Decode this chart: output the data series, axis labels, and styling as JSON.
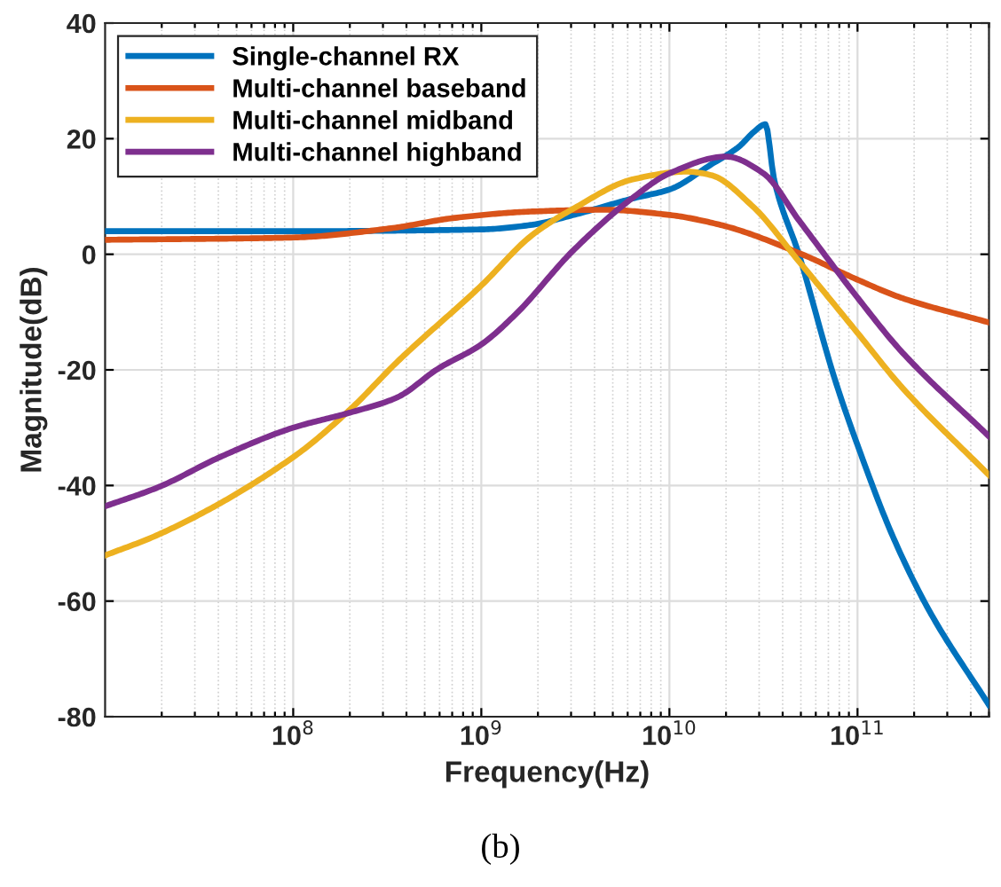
{
  "chart_data": {
    "type": "line",
    "xlabel": "Frequency(Hz)",
    "ylabel": "Magnitude(dB)",
    "log": "x",
    "xlim": [
      10000000.0,
      500000000000.0
    ],
    "ylim": [
      -80,
      40
    ],
    "xticks": [
      {
        "value": 100000000.0,
        "label": "10$^{8}$"
      },
      {
        "value": 1000000000.0,
        "label": "10$^{9}$"
      },
      {
        "value": 10000000000.0,
        "label": "10$^{10}$"
      },
      {
        "value": 100000000000.0,
        "label": "10$^{11}$"
      }
    ],
    "yticks": [
      -80,
      -60,
      -40,
      -20,
      0,
      20,
      40
    ],
    "grid": true,
    "legend": "top left",
    "marker": "none",
    "line_style": "solid",
    "annotations": [
      "(b)"
    ],
    "series": [
      {
        "name": "Single-channel RX",
        "color": "#0072bd",
        "x": [
          10000000.0,
          100000000.0,
          1000000000.0,
          1860000000.0,
          3090000000.0,
          6460000000.0,
          10000000000.0,
          16600000000.0,
          23400000000.0,
          28200000000.0,
          32400000000.0,
          36000000000.0,
          49000000000.0,
          75900000000.0,
          100000000000.0,
          155000000000.0,
          240000000000.0,
          500000000000.0
        ],
        "values": [
          4.0,
          4.0,
          4.3,
          5.1,
          6.8,
          9.7,
          11.2,
          15.5,
          18.6,
          21.2,
          22.5,
          13,
          -0.2,
          -21.7,
          -33,
          -49,
          -61.6,
          -78
        ]
      },
      {
        "name": "Multi-channel baseband",
        "color": "#d95319",
        "x": [
          10000000.0,
          100000000.0,
          331000000.0,
          724000000.0,
          1860000000.0,
          4470000000.0,
          10000000000.0,
          19100000000.0,
          49000000000.0,
          100000000000.0,
          170000000000.0,
          500000000000.0
        ],
        "values": [
          2.5,
          2.9,
          4.5,
          6.3,
          7.4,
          7.7,
          6.8,
          5.0,
          0.2,
          -4.4,
          -7.5,
          -11.8
        ]
      },
      {
        "name": "Multi-channel midband",
        "color": "#edb120",
        "x": [
          10000000.0,
          19500000.0,
          100000000.0,
          200000000.0,
          355000000.0,
          1000000000.0,
          1860000000.0,
          3090000000.0,
          6460000000.0,
          12300000000.0,
          16600000000.0,
          27500000000.0,
          49000000000.0,
          100000000000.0,
          170000000000.0,
          500000000000.0
        ],
        "values": [
          -52.1,
          -48.4,
          -35.1,
          -26.9,
          -18.7,
          -5.4,
          3.3,
          7.9,
          13.0,
          14.3,
          13.7,
          8.4,
          -1.3,
          -13.6,
          -22.8,
          -38.2
        ]
      },
      {
        "name": "Multi-channel highband",
        "color": "#7e2f8e",
        "x": [
          10000000.0,
          19500000.0,
          40700000.0,
          100000000.0,
          200000000.0,
          355000000.0,
          589000000.0,
          1000000000.0,
          1510000000.0,
          3090000000.0,
          6460000000.0,
          10000000000.0,
          20000000000.0,
          31600000000.0,
          49000000000.0,
          100000000000.0,
          170000000000.0,
          500000000000.0
        ],
        "values": [
          -43.6,
          -40.2,
          -35.1,
          -30.0,
          -27.4,
          -24.8,
          -19.8,
          -15.6,
          -10.5,
          0.7,
          9.9,
          14.0,
          16.9,
          14.0,
          5.8,
          -7.5,
          -16.7,
          -31.5
        ]
      }
    ]
  }
}
